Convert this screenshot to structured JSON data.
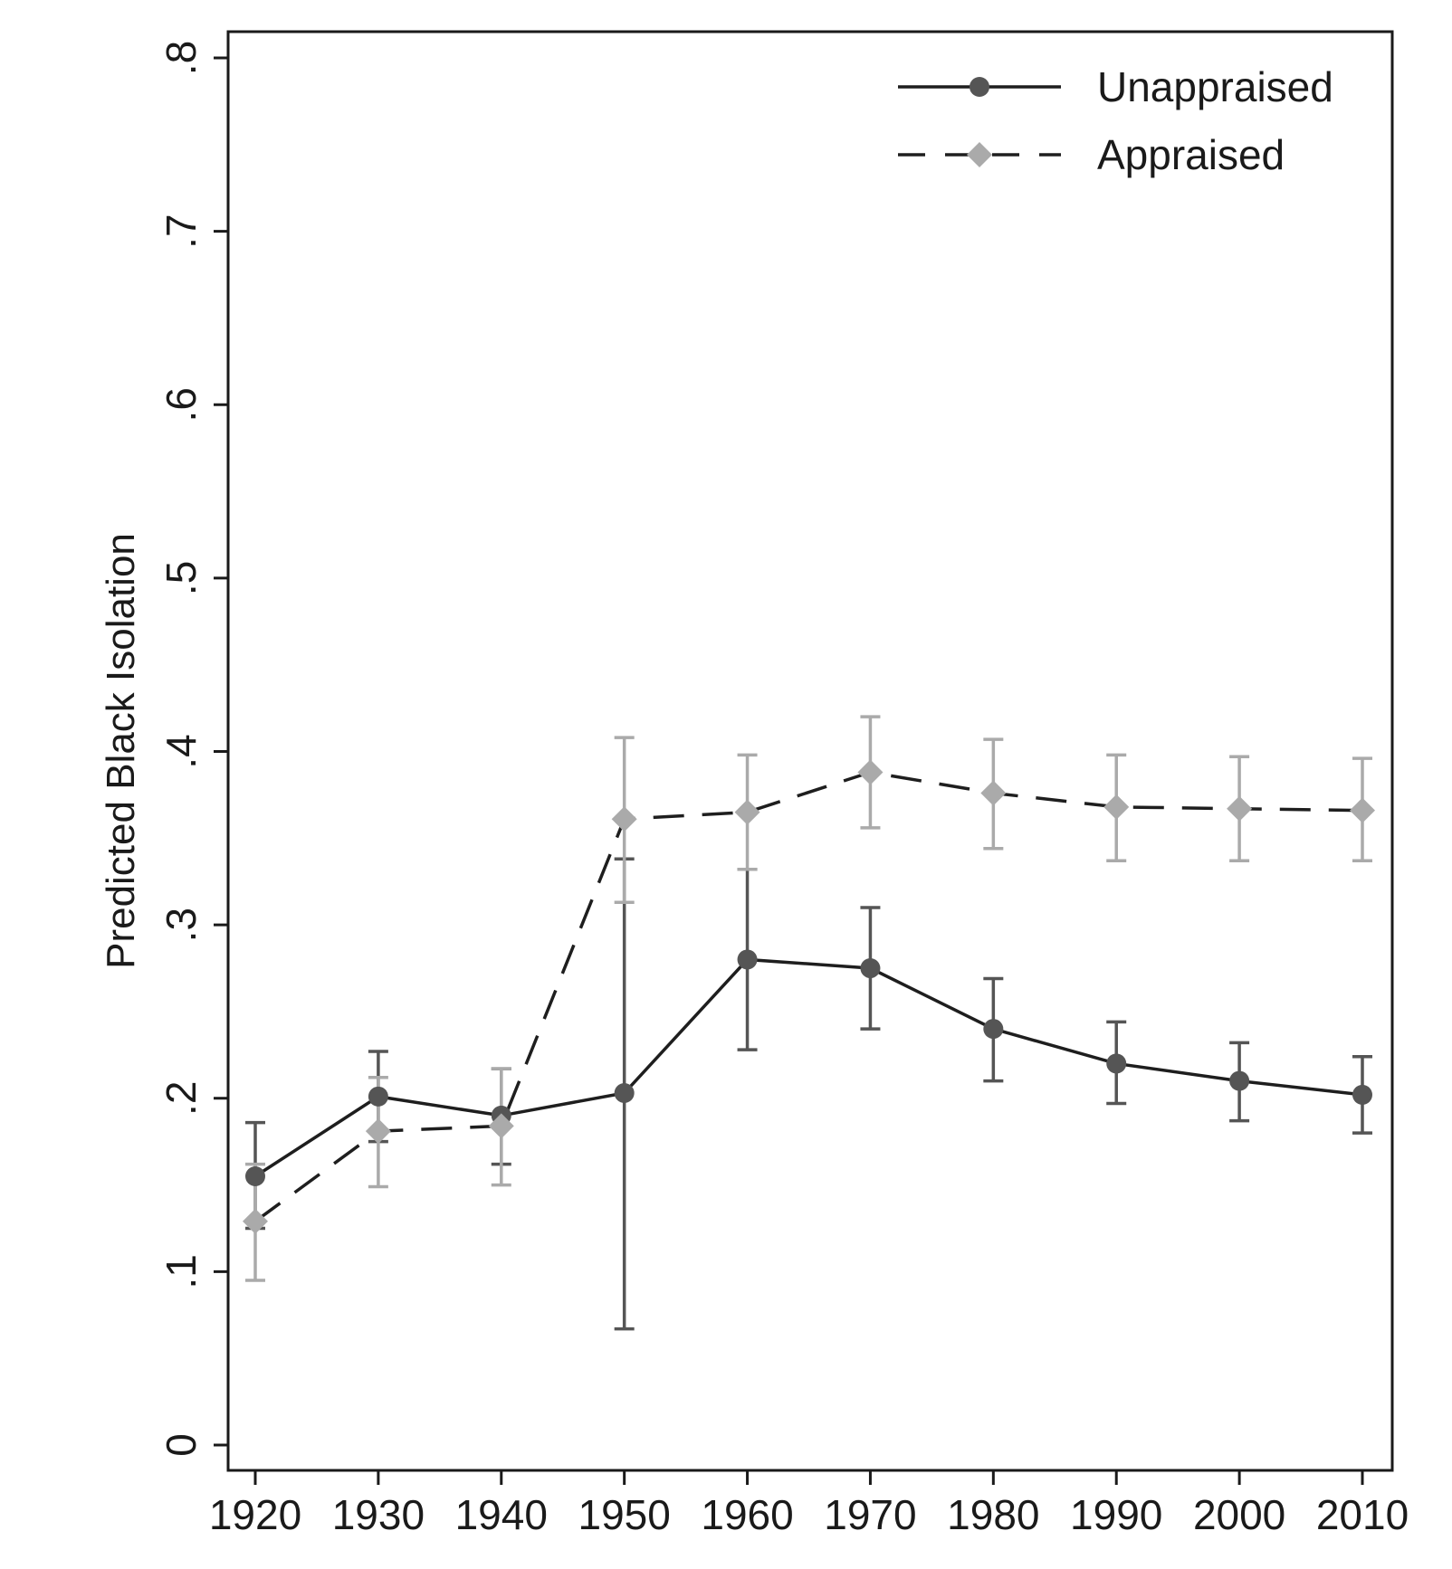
{
  "chart_data": {
    "type": "line",
    "title": "",
    "xlabel": "",
    "ylabel": "Predicted Black Isolation",
    "x": [
      1920,
      1930,
      1940,
      1950,
      1960,
      1970,
      1980,
      1990,
      2000,
      2010
    ],
    "x_tick_labels": [
      "1920",
      "1930",
      "1940",
      "1950",
      "1960",
      "1970",
      "1980",
      "1990",
      "2000",
      "2010"
    ],
    "xlim": [
      1920,
      2010
    ],
    "y_ticks": [
      0,
      0.1,
      0.2,
      0.3,
      0.4,
      0.5,
      0.6,
      0.7,
      0.8
    ],
    "y_tick_labels": [
      "0",
      ".1",
      ".2",
      ".3",
      ".4",
      ".5",
      ".6",
      ".7",
      ".8"
    ],
    "ylim": [
      0,
      0.8
    ],
    "grid": false,
    "legend_position": "top-right",
    "series": [
      {
        "name": "Unappraised",
        "line_style": "solid",
        "marker": "circle",
        "color": "#555555",
        "values": [
          0.155,
          0.201,
          0.19,
          0.203,
          0.28,
          0.275,
          0.24,
          0.22,
          0.21,
          0.202
        ],
        "lower": [
          0.125,
          0.175,
          0.162,
          0.067,
          0.228,
          0.24,
          0.21,
          0.197,
          0.187,
          0.18
        ],
        "upper": [
          0.186,
          0.227,
          0.217,
          0.338,
          0.332,
          0.31,
          0.269,
          0.244,
          0.232,
          0.224
        ]
      },
      {
        "name": "Appraised",
        "line_style": "dashed",
        "marker": "diamond",
        "color": "#aaaaaa",
        "values": [
          0.129,
          0.181,
          0.184,
          0.361,
          0.365,
          0.388,
          0.376,
          0.368,
          0.367,
          0.366
        ],
        "lower": [
          0.095,
          0.149,
          0.15,
          0.313,
          0.332,
          0.356,
          0.344,
          0.337,
          0.337,
          0.337
        ],
        "upper": [
          0.162,
          0.212,
          0.217,
          0.408,
          0.398,
          0.42,
          0.407,
          0.398,
          0.397,
          0.396
        ]
      }
    ]
  }
}
